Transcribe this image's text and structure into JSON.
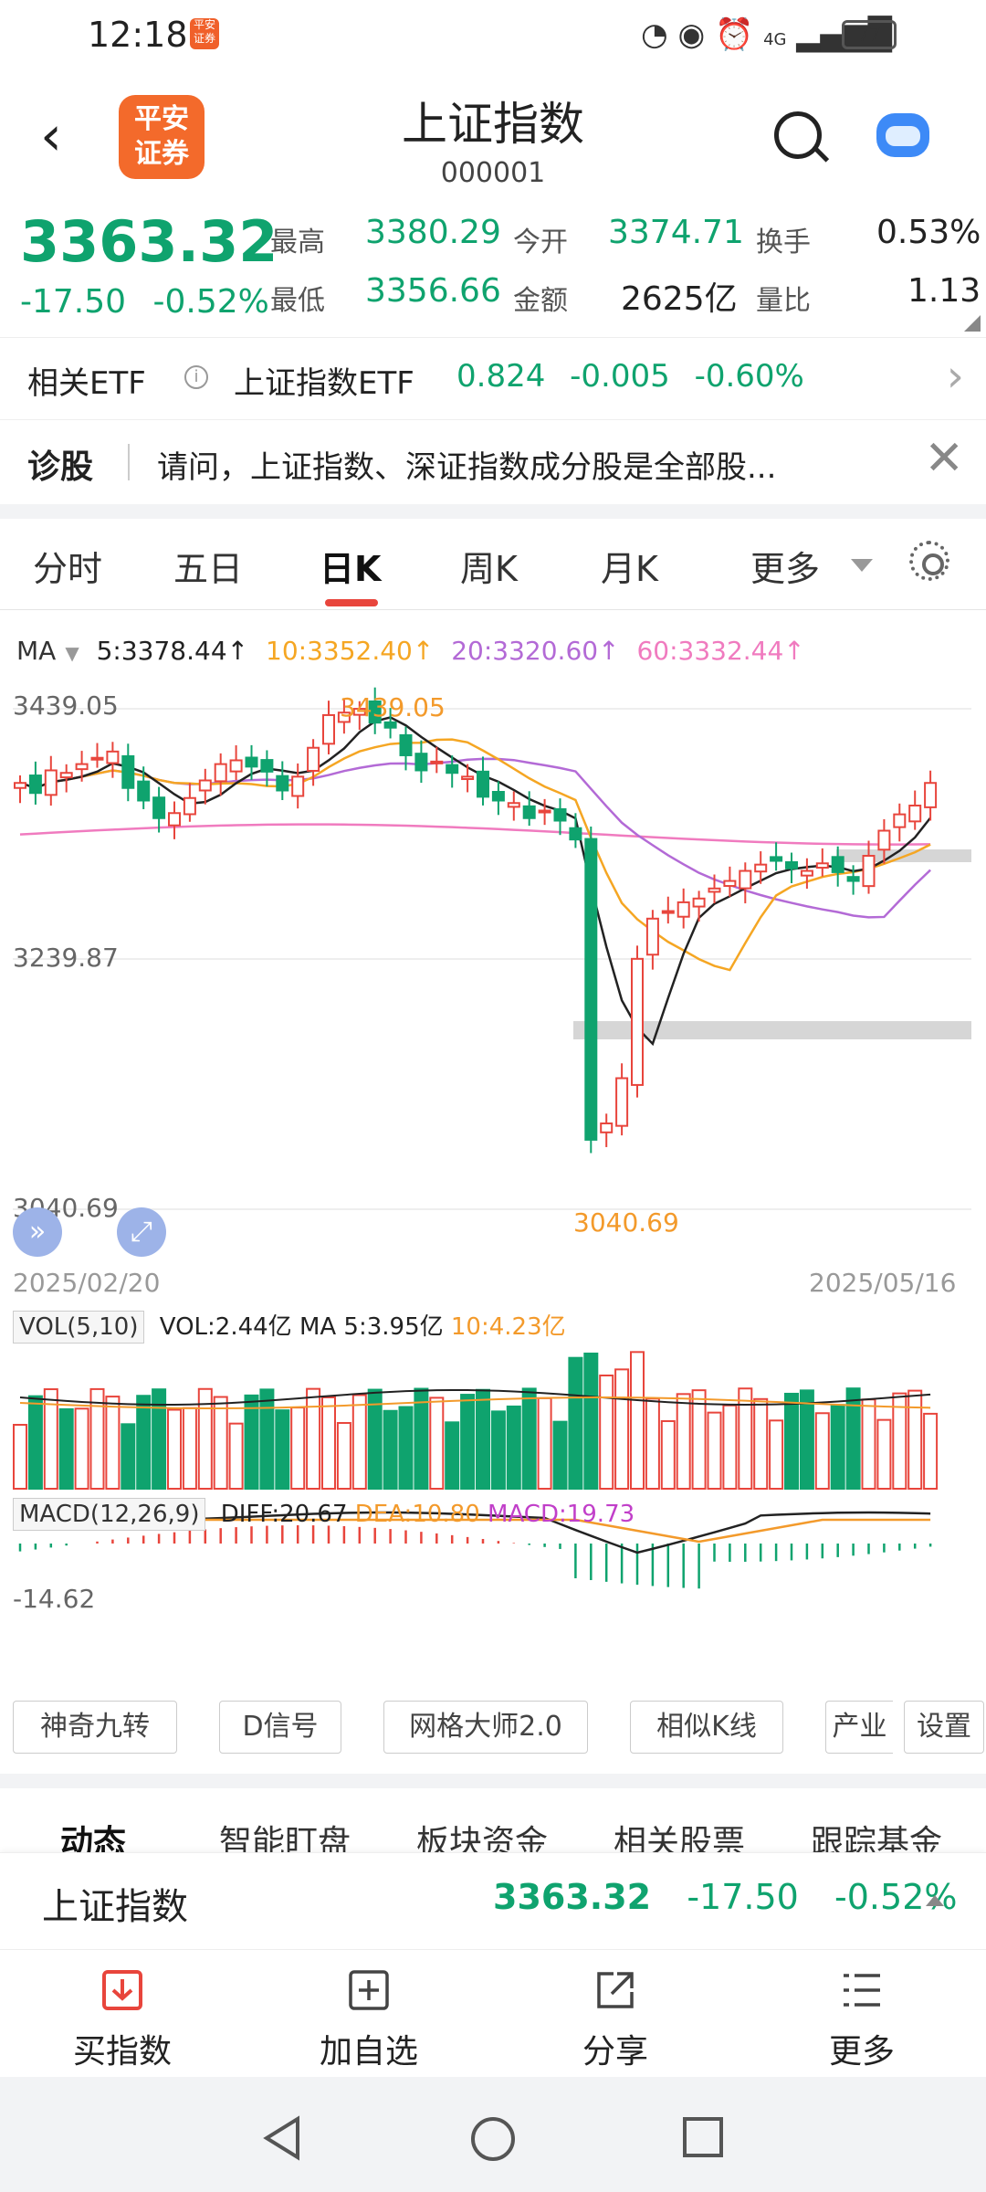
{
  "status_bar": {
    "time": "12:18",
    "app_badge": "平安证券",
    "signal": "4G",
    "battery": "77"
  },
  "header": {
    "back": "‹",
    "logo_text": "平安证券",
    "title": "上证指数",
    "code": "000001"
  },
  "quote": {
    "price": "3363.32",
    "change": "-17.50",
    "change_pct": "-0.52%",
    "high_label": "最高",
    "high": "3380.29",
    "low_label": "最低",
    "low": "3356.66",
    "open_label": "今开",
    "open": "3374.71",
    "amount_label": "金额",
    "amount": "2625亿",
    "turnover_label": "换手",
    "turnover": "0.53%",
    "volratio_label": "量比",
    "volratio": "1.13"
  },
  "etf": {
    "label": "相关ETF",
    "info_icon": "i",
    "name": "上证指数ETF",
    "price": "0.824",
    "change": "-0.005",
    "change_pct": "-0.60%"
  },
  "diagnose": {
    "label": "诊股",
    "question": "请问，上证指数、深证指数成分股是全部股..."
  },
  "tabs": [
    "分时",
    "五日",
    "日K",
    "周K",
    "月K",
    "更多"
  ],
  "ma_legend": {
    "label": "MA",
    "ma5": "5:3378.44↑",
    "ma10": "10:3352.40↑",
    "ma20": "20:3320.60↑",
    "ma60": "60:3332.44↑",
    "colors": {
      "ma5": "#222222",
      "ma10": "#f5a623",
      "ma20": "#b36ad6",
      "ma60": "#f07bbf"
    }
  },
  "chart_axis": {
    "top": "3439.05",
    "mid": "3239.87",
    "bottom": "3040.69",
    "high_mark": "3439.05",
    "low_mark": "3040.69",
    "start_date": "2025/02/20",
    "end_date": "2025/05/16"
  },
  "vol_legend": {
    "box": "VOL(5,10)",
    "vol": "VOL:2.44亿",
    "ma5": "MA 5:3.95亿",
    "ma10": "10:4.23亿"
  },
  "macd_legend": {
    "box": "MACD(12,26,9)",
    "diff": "DIFF:20.67",
    "dea": "DEA:10.80",
    "macd": "MACD:19.73",
    "axis": "-14.62"
  },
  "tools": [
    "神奇九转",
    "D信号",
    "网格大师2.0",
    "相似K线",
    "产业",
    "设置"
  ],
  "feature_tabs": [
    "动态",
    "智能盯盘",
    "板块资金",
    "相关股票",
    "跟踪基金"
  ],
  "quote_bar": {
    "name": "上证指数",
    "price": "3363.32",
    "change": "-17.50",
    "change_pct": "-0.52%"
  },
  "actions": [
    {
      "label": "买指数",
      "icon": "download-icon"
    },
    {
      "label": "加自选",
      "icon": "add-box-icon"
    },
    {
      "label": "分享",
      "icon": "share-icon"
    },
    {
      "label": "更多",
      "icon": "menu-icon"
    }
  ]
}
